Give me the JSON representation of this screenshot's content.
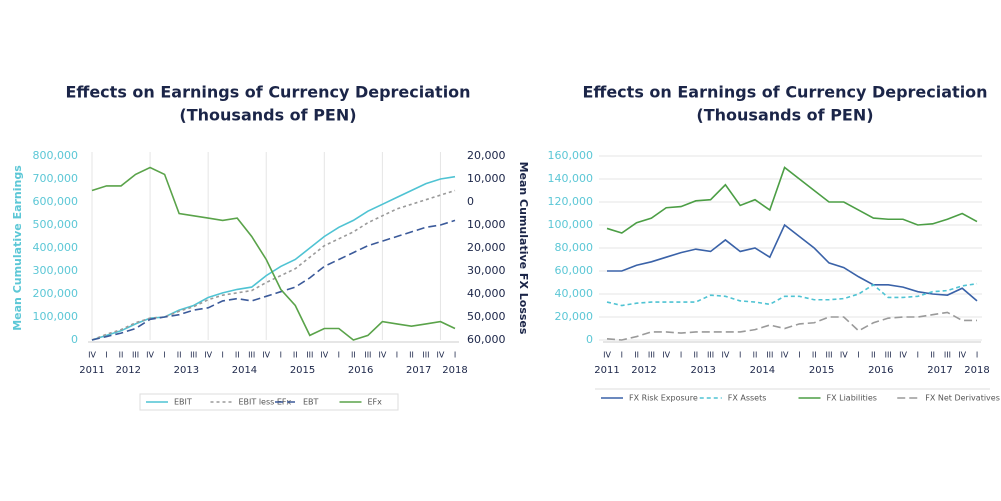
{
  "chart_data": [
    {
      "type": "line",
      "title": [
        "Effects on Earnings of Currency Depreciation",
        "(Thousands of PEN)"
      ],
      "ylabel": "Mean Cumulative Earnings",
      "y2label": "Mean Cumulative FX Losses",
      "categories": [
        "IV",
        "I",
        "II",
        "III",
        "IV",
        "I",
        "II",
        "III",
        "IV",
        "I",
        "II",
        "III",
        "IV",
        "I",
        "II",
        "III",
        "IV",
        "I",
        "II",
        "III",
        "IV",
        "I",
        "II",
        "III",
        "IV",
        "I"
      ],
      "years": [
        "2011",
        "2012",
        "2013",
        "2014",
        "2015",
        "2016",
        "2017",
        "2018"
      ],
      "ylim": [
        0,
        800000
      ],
      "yticks": [
        0,
        {
          "value": 100000,
          "label": "100,000"
        },
        {
          "value": 200000,
          "label": "200,000"
        },
        {
          "value": 300000,
          "label": "300,000"
        },
        {
          "value": 400000,
          "label": "400,000"
        },
        {
          "value": 500000,
          "label": "500,000"
        },
        {
          "value": 600000,
          "label": "600,000"
        },
        {
          "value": 700000,
          "label": "700,000"
        },
        {
          "value": 800000,
          "label": "800,000"
        }
      ],
      "y2lim": [
        -60000,
        20000
      ],
      "y2ticks": [
        {
          "value": 20000,
          "label": "20,000"
        },
        {
          "value": 10000,
          "label": "10,000"
        },
        0,
        {
          "value": -10000,
          "label": "10,000"
        },
        {
          "value": -20000,
          "label": "20,000"
        },
        {
          "value": -30000,
          "label": "30,000"
        },
        {
          "value": -40000,
          "label": "40,000"
        },
        {
          "value": -50000,
          "label": "50,000"
        },
        {
          "value": -60000,
          "label": "60,000"
        }
      ],
      "grid": "x",
      "legend": "bottom",
      "series": [
        {
          "name": "EBIT",
          "color": "#4fc3d3",
          "dash": "none",
          "values": [
            0,
            20000,
            40000,
            70000,
            95000,
            100000,
            130000,
            150000,
            185000,
            205000,
            220000,
            230000,
            280000,
            320000,
            350000,
            400000,
            450000,
            490000,
            520000,
            560000,
            590000,
            620000,
            650000,
            680000,
            700000,
            710000
          ]
        },
        {
          "name": "EBIT less EFx",
          "color": "#9a9a9a",
          "dash": "3,3",
          "values": [
            0,
            25000,
            45000,
            75000,
            95000,
            100000,
            125000,
            145000,
            175000,
            195000,
            205000,
            215000,
            250000,
            280000,
            310000,
            360000,
            410000,
            440000,
            470000,
            510000,
            540000,
            570000,
            590000,
            610000,
            630000,
            650000
          ]
        },
        {
          "name": "EBT",
          "color": "#3b5a9a",
          "dash": "8,4",
          "values": [
            0,
            15000,
            30000,
            50000,
            90000,
            100000,
            110000,
            130000,
            140000,
            170000,
            180000,
            170000,
            190000,
            210000,
            230000,
            270000,
            320000,
            350000,
            380000,
            410000,
            430000,
            450000,
            470000,
            490000,
            500000,
            520000
          ]
        },
        {
          "name": "EFx",
          "color": "#5aa34a",
          "dash": "none",
          "axis": "y2",
          "values": [
            5000,
            7000,
            7000,
            12000,
            15000,
            12000,
            -5000,
            -6000,
            -7000,
            -8000,
            -7000,
            -15000,
            -25000,
            -38000,
            -45000,
            -58000,
            -55000,
            -55000,
            -60000,
            -58000,
            -52000,
            -53000,
            -54000,
            -53000,
            -52000,
            -55000
          ]
        }
      ]
    },
    {
      "type": "line",
      "title": [
        "Effects on Earnings of Currency Depreciation",
        "(Thousands of PEN)"
      ],
      "categories": [
        "IV",
        "I",
        "II",
        "III",
        "IV",
        "I",
        "II",
        "III",
        "IV",
        "I",
        "II",
        "III",
        "IV",
        "I",
        "II",
        "III",
        "IV",
        "I",
        "II",
        "III",
        "IV",
        "I",
        "II",
        "III",
        "IV",
        "I"
      ],
      "years": [
        "2011",
        "2012",
        "2013",
        "2014",
        "2015",
        "2016",
        "2017",
        "2018"
      ],
      "ylim": [
        0,
        160000
      ],
      "yticks": [
        0,
        {
          "value": 20000,
          "label": "20,000"
        },
        {
          "value": 40000,
          "label": "40,000"
        },
        {
          "value": 60000,
          "label": "60,000"
        },
        {
          "value": 80000,
          "label": "80,000"
        },
        {
          "value": 100000,
          "label": "100,000"
        },
        {
          "value": 120000,
          "label": "120,000"
        },
        {
          "value": 140000,
          "label": "140,000"
        },
        {
          "value": 160000,
          "label": "160,000"
        }
      ],
      "grid": "y",
      "legend": "bottom",
      "series": [
        {
          "name": "FX Risk Exposure",
          "color": "#3a62a8",
          "dash": "none",
          "values": [
            60000,
            60000,
            65000,
            68000,
            72000,
            76000,
            79000,
            77000,
            87000,
            77000,
            80000,
            72000,
            100000,
            90000,
            80000,
            67000,
            63000,
            55000,
            48000,
            48000,
            46000,
            42000,
            40000,
            39000,
            45000,
            34000
          ]
        },
        {
          "name": "FX Assets",
          "color": "#4fc3d3",
          "dash": "4,3",
          "values": [
            33000,
            30000,
            32000,
            33000,
            33000,
            33000,
            33000,
            39000,
            38000,
            34000,
            33000,
            31000,
            38000,
            38000,
            35000,
            35000,
            36000,
            40000,
            48000,
            37000,
            37000,
            38000,
            42000,
            43000,
            47000,
            49000
          ]
        },
        {
          "name": "FX Liabilities",
          "color": "#4c9e45",
          "dash": "none",
          "values": [
            97000,
            93000,
            102000,
            106000,
            115000,
            116000,
            121000,
            122000,
            135000,
            117000,
            122000,
            113000,
            150000,
            140000,
            130000,
            120000,
            120000,
            113000,
            106000,
            105000,
            105000,
            100000,
            101000,
            105000,
            110000,
            103000
          ]
        },
        {
          "name": "FX Net Derivatives",
          "color": "#9a9a9a",
          "dash": "8,4",
          "values": [
            1000,
            0,
            3000,
            7000,
            7000,
            6000,
            7000,
            7000,
            7000,
            7000,
            9000,
            13000,
            10000,
            14000,
            15000,
            20000,
            20000,
            8000,
            15000,
            19000,
            20000,
            20000,
            22000,
            24000,
            17000,
            17000
          ]
        }
      ]
    }
  ]
}
